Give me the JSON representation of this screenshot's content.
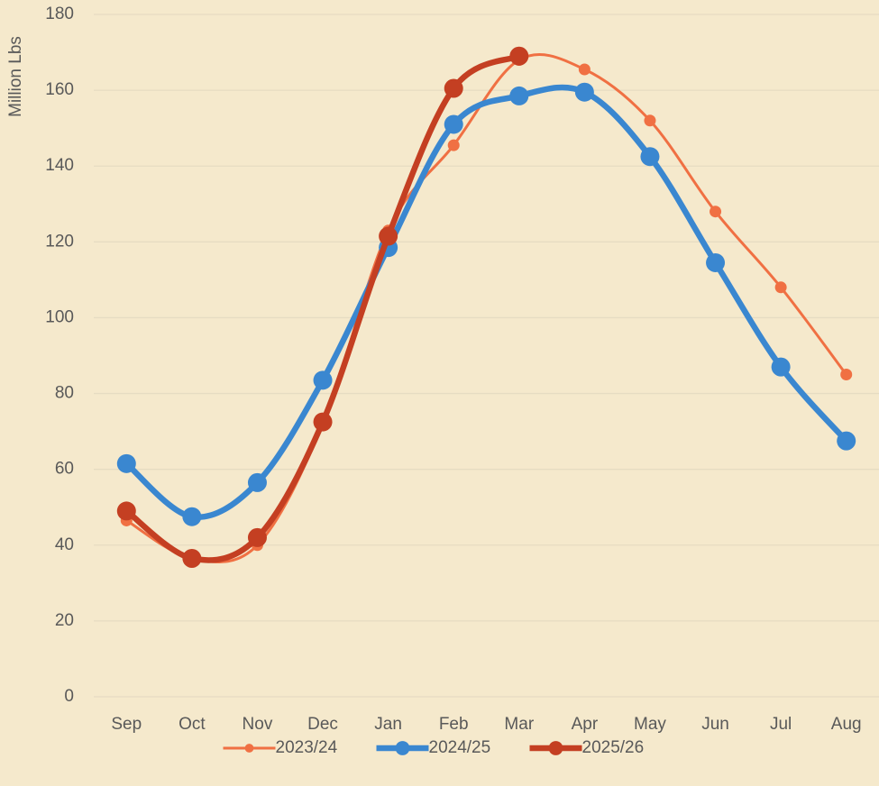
{
  "chart_data": {
    "type": "line",
    "y_label": "Million Lbs",
    "categories": [
      "Sep",
      "Oct",
      "Nov",
      "Dec",
      "Jan",
      "Feb",
      "Mar",
      "Apr",
      "May",
      "Jun",
      "Jul",
      "Aug"
    ],
    "series": [
      {
        "name": "2023/24",
        "color": "#f07043",
        "values": [
          46.5,
          36.5,
          40,
          72,
          123,
          145.5,
          168,
          165.5,
          152,
          128,
          108,
          85
        ]
      },
      {
        "name": "2024/25",
        "color": "#3a87d0",
        "values": [
          61.5,
          47.5,
          56.5,
          83.5,
          118.5,
          151,
          158.5,
          159.5,
          142.5,
          114.5,
          87,
          67.5
        ]
      },
      {
        "name": "2025/26",
        "color": "#c43f22",
        "values": [
          49,
          36.5,
          42,
          72.5,
          121.5,
          160.5,
          169,
          null,
          null,
          null,
          null,
          null
        ]
      }
    ],
    "ylim": [
      0,
      180
    ],
    "yticks": [
      0,
      20,
      40,
      60,
      80,
      100,
      120,
      140,
      160,
      180
    ],
    "grid": true,
    "smooth": true,
    "legend": "bottom"
  }
}
